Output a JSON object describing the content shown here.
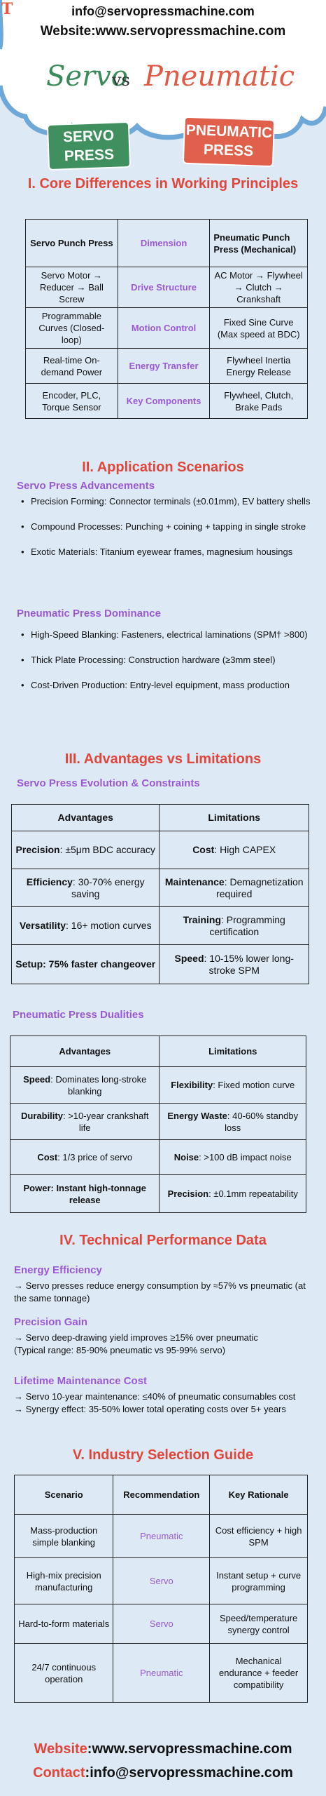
{
  "header": {
    "email": "info@servopressmachine.com",
    "website": "Website:www.servopressmachine.com",
    "logo": "T",
    "title_servo": "Servo",
    "title_vs": "vs",
    "title_pneumatic": "Pneumatic",
    "badge_servo": "SERVO PRESS",
    "badge_pneumatic": "PNEUMATIC PRESS"
  },
  "section1": {
    "title": "I. Core Differences in Working Principles",
    "headers": [
      "Servo Punch Press",
      "Dimension",
      "Pneumatic Punch Press (Mechanical)"
    ],
    "rows": [
      [
        "Servo Motor → Reducer → Ball Screw",
        "Drive Structure",
        "AC Motor → Flywheel → Clutch → Crankshaft"
      ],
      [
        "Programmable Curves (Closed-loop)",
        "Motion Control",
        "Fixed Sine Curve (Max speed at BDC)"
      ],
      [
        "Real-time On-demand Power",
        "Energy Transfer",
        "Flywheel Inertia Energy Release"
      ],
      [
        "Encoder, PLC, Torque Sensor",
        "Key Components",
        "Flywheel, Clutch, Brake Pads"
      ]
    ]
  },
  "section2": {
    "title": "II. Application Scenarios",
    "servo_heading": "Servo Press Advancements",
    "servo_items": [
      "Precision Forming: Connector terminals (±0.01mm), EV battery shells",
      "Compound Processes: Punching + coining + tapping in single stroke",
      "Exotic Materials: Titanium eyewear frames, magnesium housings"
    ],
    "pneu_heading": "Pneumatic Press Dominance",
    "pneu_items": [
      "High-Speed Blanking: Fasteners, electrical laminations (SPM† >800)",
      "Thick Plate Processing: Construction hardware (≥3mm steel)",
      "Cost-Driven Production: Entry-level equipment, mass production"
    ]
  },
  "section3": {
    "title": "III. Advantages vs Limitations",
    "servo_heading": "Servo Press Evolution & Constraints",
    "servo_headers": [
      "Advantages",
      "Limitations"
    ],
    "servo_rows": [
      [
        {
          "b": "Precision",
          "t": ": ±5μm BDC accuracy"
        },
        {
          "b": "Cost",
          "t": ": High CAPEX"
        }
      ],
      [
        {
          "b": "Efficiency",
          "t": ": 30-70% energy saving"
        },
        {
          "b": "Maintenance",
          "t": ": Demagnetization required"
        }
      ],
      [
        {
          "b": "Versatility",
          "t": ": 16+ motion curves"
        },
        {
          "b": "Training",
          "t": ": Programming certification"
        }
      ],
      [
        {
          "b": "Setup: 75% faster changeover",
          "t": ""
        },
        {
          "b": "Speed",
          "t": ": 10-15% lower long-stroke SPM"
        }
      ]
    ],
    "pneu_heading": "Pneumatic Press Dualities",
    "pneu_headers": [
      "Advantages",
      "Limitations"
    ],
    "pneu_rows": [
      [
        {
          "b": "Speed",
          "t": ": Dominates long-stroke blanking"
        },
        {
          "b": "Flexibility",
          "t": ": Fixed motion curve"
        }
      ],
      [
        {
          "b": "Durability",
          "t": ": >10-year crankshaft life"
        },
        {
          "b": "Energy Waste",
          "t": ": 40-60% standby loss"
        }
      ],
      [
        {
          "b": "Cost",
          "t": ": 1/3 price of servo"
        },
        {
          "b": "Noise",
          "t": ": >100 dB impact noise"
        }
      ],
      [
        {
          "b": "Power: Instant high-tonnage release",
          "t": ""
        },
        {
          "b": "Precision",
          "t": ": ±0.1mm repeatability"
        }
      ]
    ]
  },
  "section4": {
    "title": "IV. Technical Performance Data",
    "energy_heading": "Energy Efficiency",
    "energy_text": "→ Servo presses reduce energy consumption by ≈57% vs pneumatic (at the same tonnage)",
    "precision_heading": "Precision Gain",
    "precision_text1": "→ Servo deep-drawing yield improves ≥15% over pneumatic",
    "precision_text2": "(Typical range: 85-90% pneumatic vs 95-99% servo)",
    "maint_heading": "Lifetime Maintenance Cost",
    "maint_text1": "→ Servo 10-year maintenance: ≤40% of pneumatic consumables cost",
    "maint_text2": "→ Synergy effect: 35-50% lower total operating costs over 5+ years"
  },
  "section5": {
    "title": "V. Industry Selection Guide",
    "headers": [
      "Scenario",
      "Recommendation",
      "Key Rationale"
    ],
    "rows": [
      [
        "Mass-production simple blanking",
        "Pneumatic",
        "Cost efficiency + high SPM"
      ],
      [
        "High-mix precision manufacturing",
        "Servo",
        "Instant setup + curve programming"
      ],
      [
        "Hard-to-form materials",
        "Servo",
        "Speed/temperature synergy control"
      ],
      [
        "24/7 continuous operation",
        "Pneumatic",
        "Mechanical endurance + feeder compatibility"
      ]
    ]
  },
  "footer": {
    "website_label": "Website",
    "website_value": ":www.servopressmachine.com",
    "contact_label": "Contact",
    "contact_value": ":info@servopressmachine.com"
  },
  "colors": {
    "accent_red": "#e0463a",
    "accent_purple": "#9b59d6",
    "servo_green": "#3f8f5f",
    "pneumatic_red": "#e0604c",
    "background": "#dde9f5"
  }
}
